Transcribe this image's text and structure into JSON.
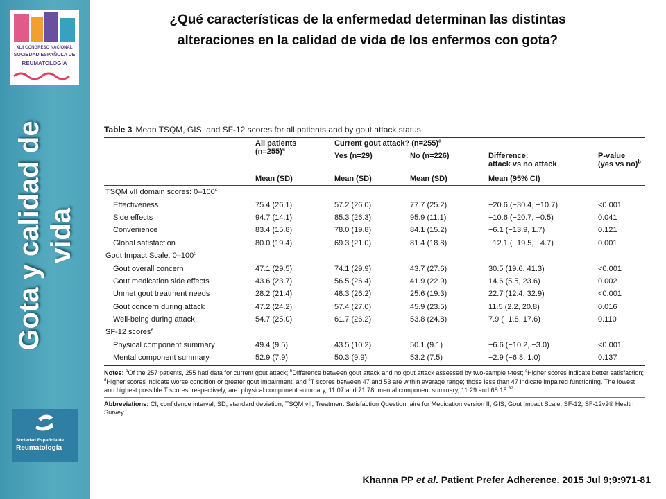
{
  "sidebar": {
    "vertical_title": [
      "Gota  y calidad de",
      "vida"
    ],
    "top_logo": [
      "XLII CONGRESO NACIONAL",
      "SOCIEDAD ESPAÑOLA DE",
      "REUMATOLOGÍA"
    ],
    "bottom_logo": [
      "Sociedad Española de",
      "Reumatología"
    ]
  },
  "header": {
    "title": [
      "¿Qué características de la enfermedad determinan las distintas",
      "alteraciones en la calidad de vida de los enfermos con gota?"
    ]
  },
  "table": {
    "caption": {
      "label": "Table 3",
      "text": "Mean TSQM, GIS, and SF-12 scores for all patients and by gout attack status"
    },
    "columns": {
      "all": {
        "lines": [
          "All patients",
          "(n=255)"
        ],
        "sup": "a"
      },
      "group": {
        "lines": [
          "Current gout attack? (n=255)"
        ],
        "sup": "a"
      },
      "yes": {
        "lines": [
          "Yes (n=29)"
        ]
      },
      "no": {
        "lines": [
          "No (n=226)"
        ]
      },
      "diff": {
        "lines": [
          "Difference:",
          "attack vs no attack"
        ]
      },
      "p": {
        "lines": [
          "P-value",
          "(yes vs no)"
        ],
        "sup": "b"
      },
      "stats": [
        "Mean (SD)",
        "Mean (SD)",
        "Mean (SD)",
        "Mean (95% CI)"
      ]
    },
    "rows": [
      {
        "section": "TSQM vII domain scores: 0–100",
        "sup": "c"
      },
      {
        "cells": [
          "Effectiveness",
          "75.4 (26.1)",
          "57.2 (26.0)",
          "77.7 (25.2)",
          "−20.6 (−30.4, −10.7)",
          "<0.001"
        ]
      },
      {
        "cells": [
          "Side effects",
          "94.7 (14.1)",
          "85.3 (26.3)",
          "95.9 (11.1)",
          "−10.6 (−20.7, −0.5)",
          "0.041"
        ]
      },
      {
        "cells": [
          "Convenience",
          "83.4 (15.8)",
          "78.0 (19.8)",
          "84.1 (15.2)",
          "−6.1 (−13.9, 1.7)",
          "0.121"
        ]
      },
      {
        "cells": [
          "Global satisfaction",
          "80.0 (19.4)",
          "69.3 (21.0)",
          "81.4 (18.8)",
          "−12.1 (−19.5, −4.7)",
          "0.001"
        ]
      },
      {
        "section": "Gout Impact Scale: 0–100",
        "sup": "d"
      },
      {
        "cells": [
          "Gout overall concern",
          "47.1 (29.5)",
          "74.1 (29.9)",
          "43.7 (27.6)",
          "30.5 (19.6, 41.3)",
          "<0.001"
        ]
      },
      {
        "cells": [
          "Gout medication side effects",
          "43.6 (23.7)",
          "56.5 (26.4)",
          "41.9 (22.9)",
          "14.6 (5.5, 23.6)",
          "0.002"
        ]
      },
      {
        "cells": [
          "Unmet gout treatment needs",
          "28.2 (21.4)",
          "48.3 (26.2)",
          "25.6 (19.3)",
          "22.7 (12.4, 32.9)",
          "<0.001"
        ]
      },
      {
        "cells": [
          "Gout concern during attack",
          "47.2 (24.2)",
          "57.4 (27.0)",
          "45.9 (23.5)",
          "11.5 (2.2, 20.8)",
          "0.016"
        ]
      },
      {
        "cells": [
          "Well-being during attack",
          "54.7 (25.0)",
          "61.7 (26.2)",
          "53.8 (24.8)",
          "7.9 (−1.8, 17.6)",
          "0.110"
        ]
      },
      {
        "section": "SF-12 scores",
        "sup": "e"
      },
      {
        "cells": [
          "Physical component summary",
          "49.4 (9.5)",
          "43.5 (10.2)",
          "50.1 (9.1)",
          "−6.6 (−10.2, −3.0)",
          "<0.001"
        ]
      },
      {
        "cells": [
          "Mental component summary",
          "52.9 (7.9)",
          "50.3 (9.9)",
          "53.2 (7.5)",
          "−2.9 (−6.8, 1.0)",
          "0.137"
        ]
      }
    ],
    "notes": [
      {
        "bold": "Notes: "
      },
      {
        "sup": "a"
      },
      {
        "text": "Of the 257 patients, 255 had data for current gout attack; "
      },
      {
        "sup": "b"
      },
      {
        "text": "Difference between gout attack and no gout attack assessed by two-sample t-test; "
      },
      {
        "sup": "c"
      },
      {
        "text": "Higher scores indicate better satisfaction; "
      },
      {
        "sup": "d"
      },
      {
        "text": "Higher scores indicate worse condition or greater gout impairment; and "
      },
      {
        "sup": "e"
      },
      {
        "text": "T scores between 47 and 53 are within average range; those less than 47 indicate impaired functioning. The lowest and highest possible T scores, respectively, are: physical component summary, 11.07 and 71.78; mental component summary, 11.29 and 68.15."
      },
      {
        "sup": "32"
      }
    ],
    "abbreviations": [
      {
        "bold": "Abbreviations: "
      },
      {
        "text": "CI, confidence interval; SD, standard deviation; TSQM vII, Treatment Satisfaction Questionnaire for Medication version II; GIS, Gout Impact Scale; SF-12, SF-12v2® Health Survey."
      }
    ]
  },
  "citation": [
    {
      "text": "Khanna PP "
    },
    {
      "italic": "et al"
    },
    {
      "text": ". Patient Prefer Adherence. 2015 Jul 9;9:971-81"
    }
  ]
}
